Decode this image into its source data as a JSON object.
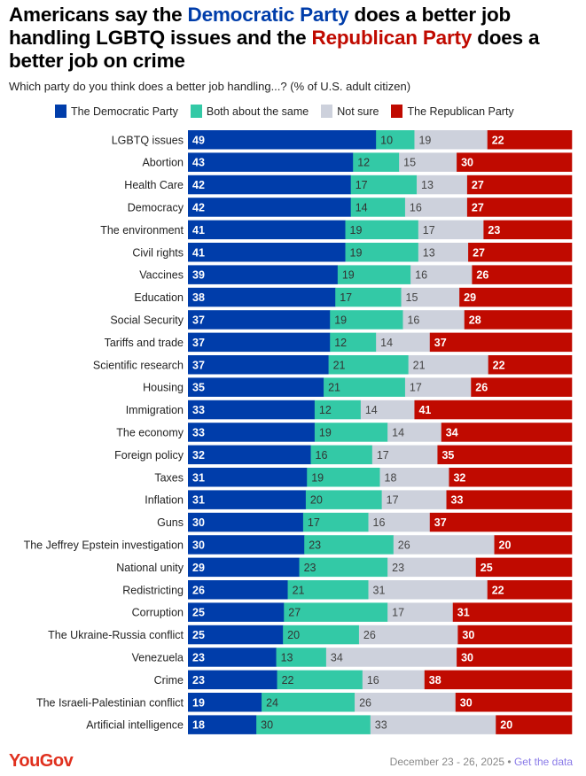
{
  "chart_data": {
    "type": "bar",
    "stacked": true,
    "orientation": "horizontal",
    "title_parts": [
      "Americans say the ",
      "Democratic Party",
      " does a better job handling LGBTQ issues and the ",
      "Republican Party",
      " does a better job on crime"
    ],
    "subtitle": "Which party do you think does a better job handling...? (% of U.S. adult citizen)",
    "legend_position": "top",
    "categories": [
      "LGBTQ issues",
      "Abortion",
      "Health Care",
      "Democracy",
      "The environment",
      "Civil rights",
      "Vaccines",
      "Education",
      "Social Security",
      "Tariffs and trade",
      "Scientific research",
      "Housing",
      "Immigration",
      "The economy",
      "Foreign policy",
      "Taxes",
      "Inflation",
      "Guns",
      "The Jeffrey Epstein investigation",
      "National unity",
      "Redistricting",
      "Corruption",
      "The Ukraine-Russia conflict",
      "Venezuela",
      "Crime",
      "The Israeli-Palestinian conflict",
      "Artificial intelligence"
    ],
    "series": [
      {
        "name": "The Democratic Party",
        "color": "#003DAA",
        "text_color": "#ffffff",
        "values": [
          49,
          43,
          42,
          42,
          41,
          41,
          39,
          38,
          37,
          37,
          37,
          35,
          33,
          33,
          32,
          31,
          31,
          30,
          30,
          29,
          26,
          25,
          25,
          23,
          23,
          19,
          18
        ]
      },
      {
        "name": "Both about the same",
        "color": "#33C9A6",
        "text_color": "#333333",
        "values": [
          10,
          12,
          17,
          14,
          19,
          19,
          19,
          17,
          19,
          12,
          21,
          21,
          12,
          19,
          16,
          19,
          20,
          17,
          23,
          23,
          21,
          27,
          20,
          13,
          22,
          24,
          30
        ]
      },
      {
        "name": "Not sure",
        "color": "#CDD1DC",
        "text_color": "#444444",
        "values": [
          19,
          15,
          13,
          16,
          17,
          13,
          16,
          15,
          16,
          14,
          21,
          17,
          14,
          14,
          17,
          18,
          17,
          16,
          26,
          23,
          31,
          17,
          26,
          34,
          16,
          26,
          33
        ]
      },
      {
        "name": "The Republican Party",
        "color": "#C00A00",
        "text_color": "#ffffff",
        "values": [
          22,
          30,
          27,
          27,
          23,
          27,
          26,
          29,
          28,
          37,
          22,
          26,
          41,
          34,
          35,
          32,
          33,
          37,
          20,
          25,
          22,
          31,
          30,
          30,
          38,
          30,
          20
        ]
      }
    ]
  },
  "footer": {
    "logo": "YouGov",
    "date": "December 23 - 26, 2025",
    "separator": " • ",
    "link": "Get the data"
  }
}
